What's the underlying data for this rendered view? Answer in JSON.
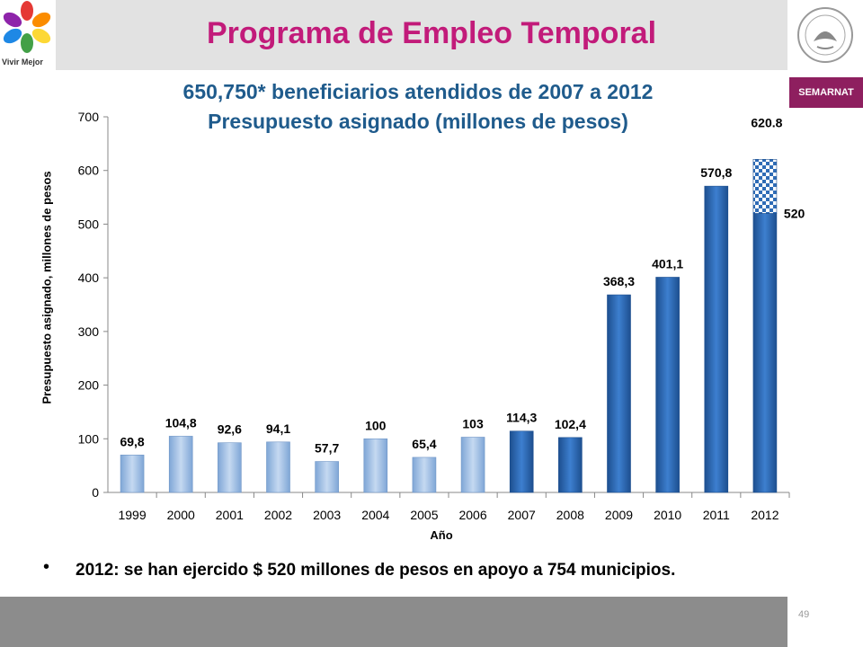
{
  "header": {
    "title": "Programa de Empleo Temporal",
    "logo_text": "Vivir Mejor",
    "agency_badge": "SEMARNAT"
  },
  "subtitle": {
    "line1": "650,750* beneficiarios atendidos de 2007 a 2012",
    "line2": "Presupuesto asignado (millones de pesos)"
  },
  "colors": {
    "title": "#c21b7a",
    "subtitle": "#1f5b8c",
    "bar_light": "#9fbde0",
    "bar_dark": "#2f6cb6",
    "badge": "#8e1f5f"
  },
  "chart_data": {
    "type": "bar",
    "xlabel": "Año",
    "ylabel": "Presupuesto asignado, millones de pesos",
    "ylim": [
      0,
      700
    ],
    "yticks": [
      "0",
      "100",
      "200",
      "300",
      "400",
      "500",
      "600",
      "700"
    ],
    "categories": [
      "1999",
      "2000",
      "2001",
      "2002",
      "2003",
      "2004",
      "2005",
      "2006",
      "2007",
      "2008",
      "2009",
      "2010",
      "2011",
      "2012"
    ],
    "values": [
      69.8,
      104.8,
      92.6,
      94.1,
      57.7,
      100,
      65.4,
      103,
      114.3,
      102.4,
      368.3,
      401.1,
      570.8,
      520
    ],
    "labels": [
      "69,8",
      "104,8",
      "92,6",
      "94,1",
      "57,7",
      "100",
      "65,4",
      "103",
      "114,3",
      "102,4",
      "368,3",
      "401,1",
      "570,8",
      "520"
    ],
    "extra_2012": {
      "total": 620.8,
      "label": "620.8"
    }
  },
  "bullet": "2012: se han ejercido $ 520 millones de pesos en apoyo a 754 municipios.",
  "page_number": "49"
}
